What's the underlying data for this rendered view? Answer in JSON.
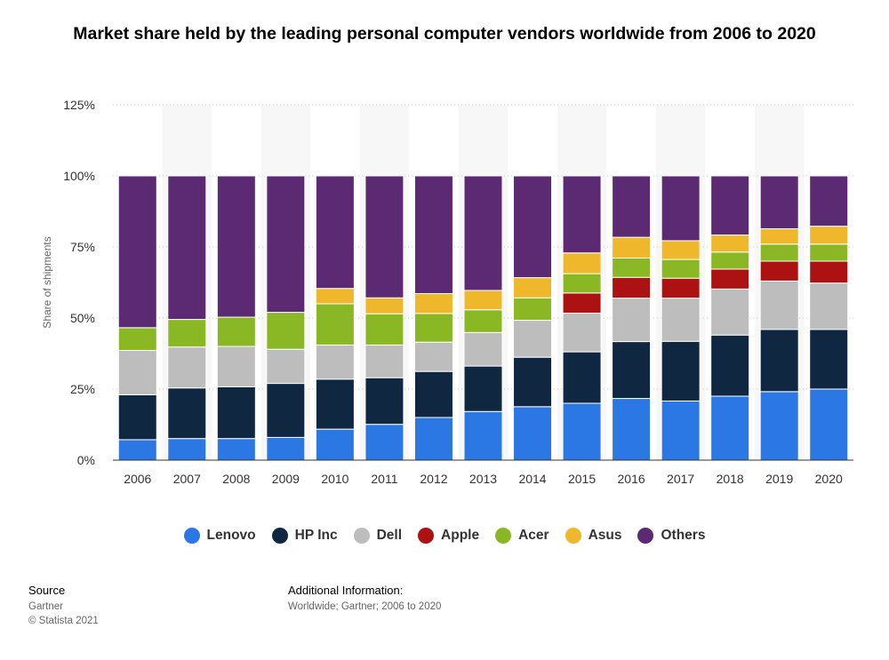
{
  "title": "Market share held by the leading personal computer vendors worldwide from 2006 to 2020",
  "footer": {
    "source_heading": "Source",
    "source_lines": [
      "Gartner",
      "© Statista 2021"
    ],
    "info_heading": "Additional Information:",
    "info_text": "Worldwide; Gartner; 2006 to 2020"
  },
  "chart_data": {
    "type": "bar",
    "stacked": true,
    "title": "Market share held by the leading personal computer vendors worldwide from 2006 to 2020",
    "xlabel": "",
    "ylabel": "Share of shipments",
    "ylim": [
      0,
      125
    ],
    "yticks": [
      0,
      25,
      50,
      75,
      100,
      125
    ],
    "ytick_labels": [
      "0%",
      "25%",
      "50%",
      "75%",
      "100%",
      "125%"
    ],
    "grid": true,
    "legend_position": "bottom",
    "categories": [
      "2006",
      "2007",
      "2008",
      "2009",
      "2010",
      "2011",
      "2012",
      "2013",
      "2014",
      "2015",
      "2016",
      "2017",
      "2018",
      "2019",
      "2020"
    ],
    "series": [
      {
        "name": "Lenovo",
        "color": "#2b78e4",
        "values": [
          7.2,
          7.6,
          7.6,
          8.0,
          10.9,
          12.6,
          15.0,
          17.1,
          18.8,
          20.0,
          21.7,
          20.8,
          22.5,
          24.1,
          25.0
        ]
      },
      {
        "name": "HP Inc",
        "color": "#0f2741",
        "values": [
          15.8,
          17.8,
          18.2,
          19.0,
          17.6,
          16.4,
          16.2,
          16.0,
          17.4,
          18.1,
          20.0,
          21.0,
          21.5,
          21.9,
          21.0
        ]
      },
      {
        "name": "Dell",
        "color": "#bdbdbd",
        "values": [
          15.6,
          14.4,
          14.2,
          12.0,
          12.0,
          11.5,
          10.3,
          11.8,
          13.0,
          13.6,
          15.3,
          15.2,
          16.2,
          17.0,
          16.3
        ]
      },
      {
        "name": "Apple",
        "color": "#ad1212",
        "values": [
          0,
          0,
          0,
          0,
          0,
          0,
          0,
          0,
          0,
          7.1,
          7.3,
          7.0,
          7.0,
          7.0,
          7.7
        ]
      },
      {
        "name": "Acer",
        "color": "#8ab824",
        "values": [
          8.0,
          9.7,
          10.3,
          13.0,
          14.5,
          11.0,
          10.1,
          8.0,
          7.9,
          6.8,
          6.8,
          6.6,
          6.0,
          6.0,
          6.0
        ]
      },
      {
        "name": "Asus",
        "color": "#efb72b",
        "values": [
          0,
          0,
          0,
          0,
          5.4,
          5.6,
          7.0,
          6.8,
          7.1,
          7.3,
          7.3,
          6.6,
          6.0,
          5.4,
          6.3
        ]
      },
      {
        "name": "Others",
        "color": "#5c2a72",
        "values": [
          53.4,
          50.5,
          49.7,
          48.0,
          39.6,
          42.9,
          41.4,
          40.3,
          35.8,
          27.1,
          21.6,
          22.8,
          20.8,
          18.6,
          17.7
        ]
      }
    ]
  }
}
